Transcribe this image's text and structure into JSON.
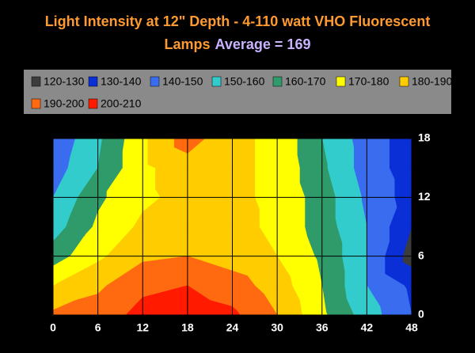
{
  "chart_data": {
    "type": "contour",
    "title_lines": [
      "Light Intensity at 12\" Depth - 4-110 watt VHO Fluorescent",
      "Lamps"
    ],
    "subtitle": "Average = 169",
    "x": [
      0,
      6,
      12,
      18,
      24,
      30,
      36,
      42,
      48
    ],
    "y": [
      0,
      3,
      6,
      9,
      12,
      15,
      18
    ],
    "z": [
      [
        192,
        195,
        203,
        205,
        202,
        190,
        172,
        155,
        140
      ],
      [
        180,
        188,
        198,
        200,
        195,
        185,
        170,
        150,
        138
      ],
      [
        165,
        178,
        188,
        190,
        185,
        180,
        168,
        150,
        125
      ],
      [
        155,
        172,
        182,
        185,
        183,
        178,
        165,
        150,
        130
      ],
      [
        150,
        168,
        178,
        183,
        182,
        178,
        165,
        148,
        135
      ],
      [
        145,
        160,
        178,
        185,
        182,
        178,
        162,
        145,
        135
      ],
      [
        142,
        158,
        178,
        195,
        182,
        178,
        160,
        145,
        135
      ]
    ],
    "levels": [
      {
        "label": "120-130",
        "min": 120,
        "max": 130,
        "color": "#3c3c3c"
      },
      {
        "label": "130-140",
        "min": 130,
        "max": 140,
        "color": "#0a2fd6"
      },
      {
        "label": "140-150",
        "min": 140,
        "max": 150,
        "color": "#3a6cf0"
      },
      {
        "label": "150-160",
        "min": 150,
        "max": 160,
        "color": "#33cccc"
      },
      {
        "label": "160-170",
        "min": 160,
        "max": 170,
        "color": "#2f9a6a"
      },
      {
        "label": "170-180",
        "min": 170,
        "max": 180,
        "color": "#ffff00"
      },
      {
        "label": "180-190",
        "min": 180,
        "max": 190,
        "color": "#ffcc00"
      },
      {
        "label": "190-200",
        "min": 190,
        "max": 200,
        "color": "#ff6a10"
      },
      {
        "label": "200-210",
        "min": 200,
        "max": 210,
        "color": "#ff1a00"
      }
    ],
    "xlim": [
      0,
      48
    ],
    "xticks": [
      0,
      6,
      12,
      18,
      24,
      30,
      36,
      42,
      48
    ],
    "ylim": [
      0,
      18
    ],
    "yticks": [
      0,
      6,
      12,
      18
    ],
    "grid": true
  }
}
